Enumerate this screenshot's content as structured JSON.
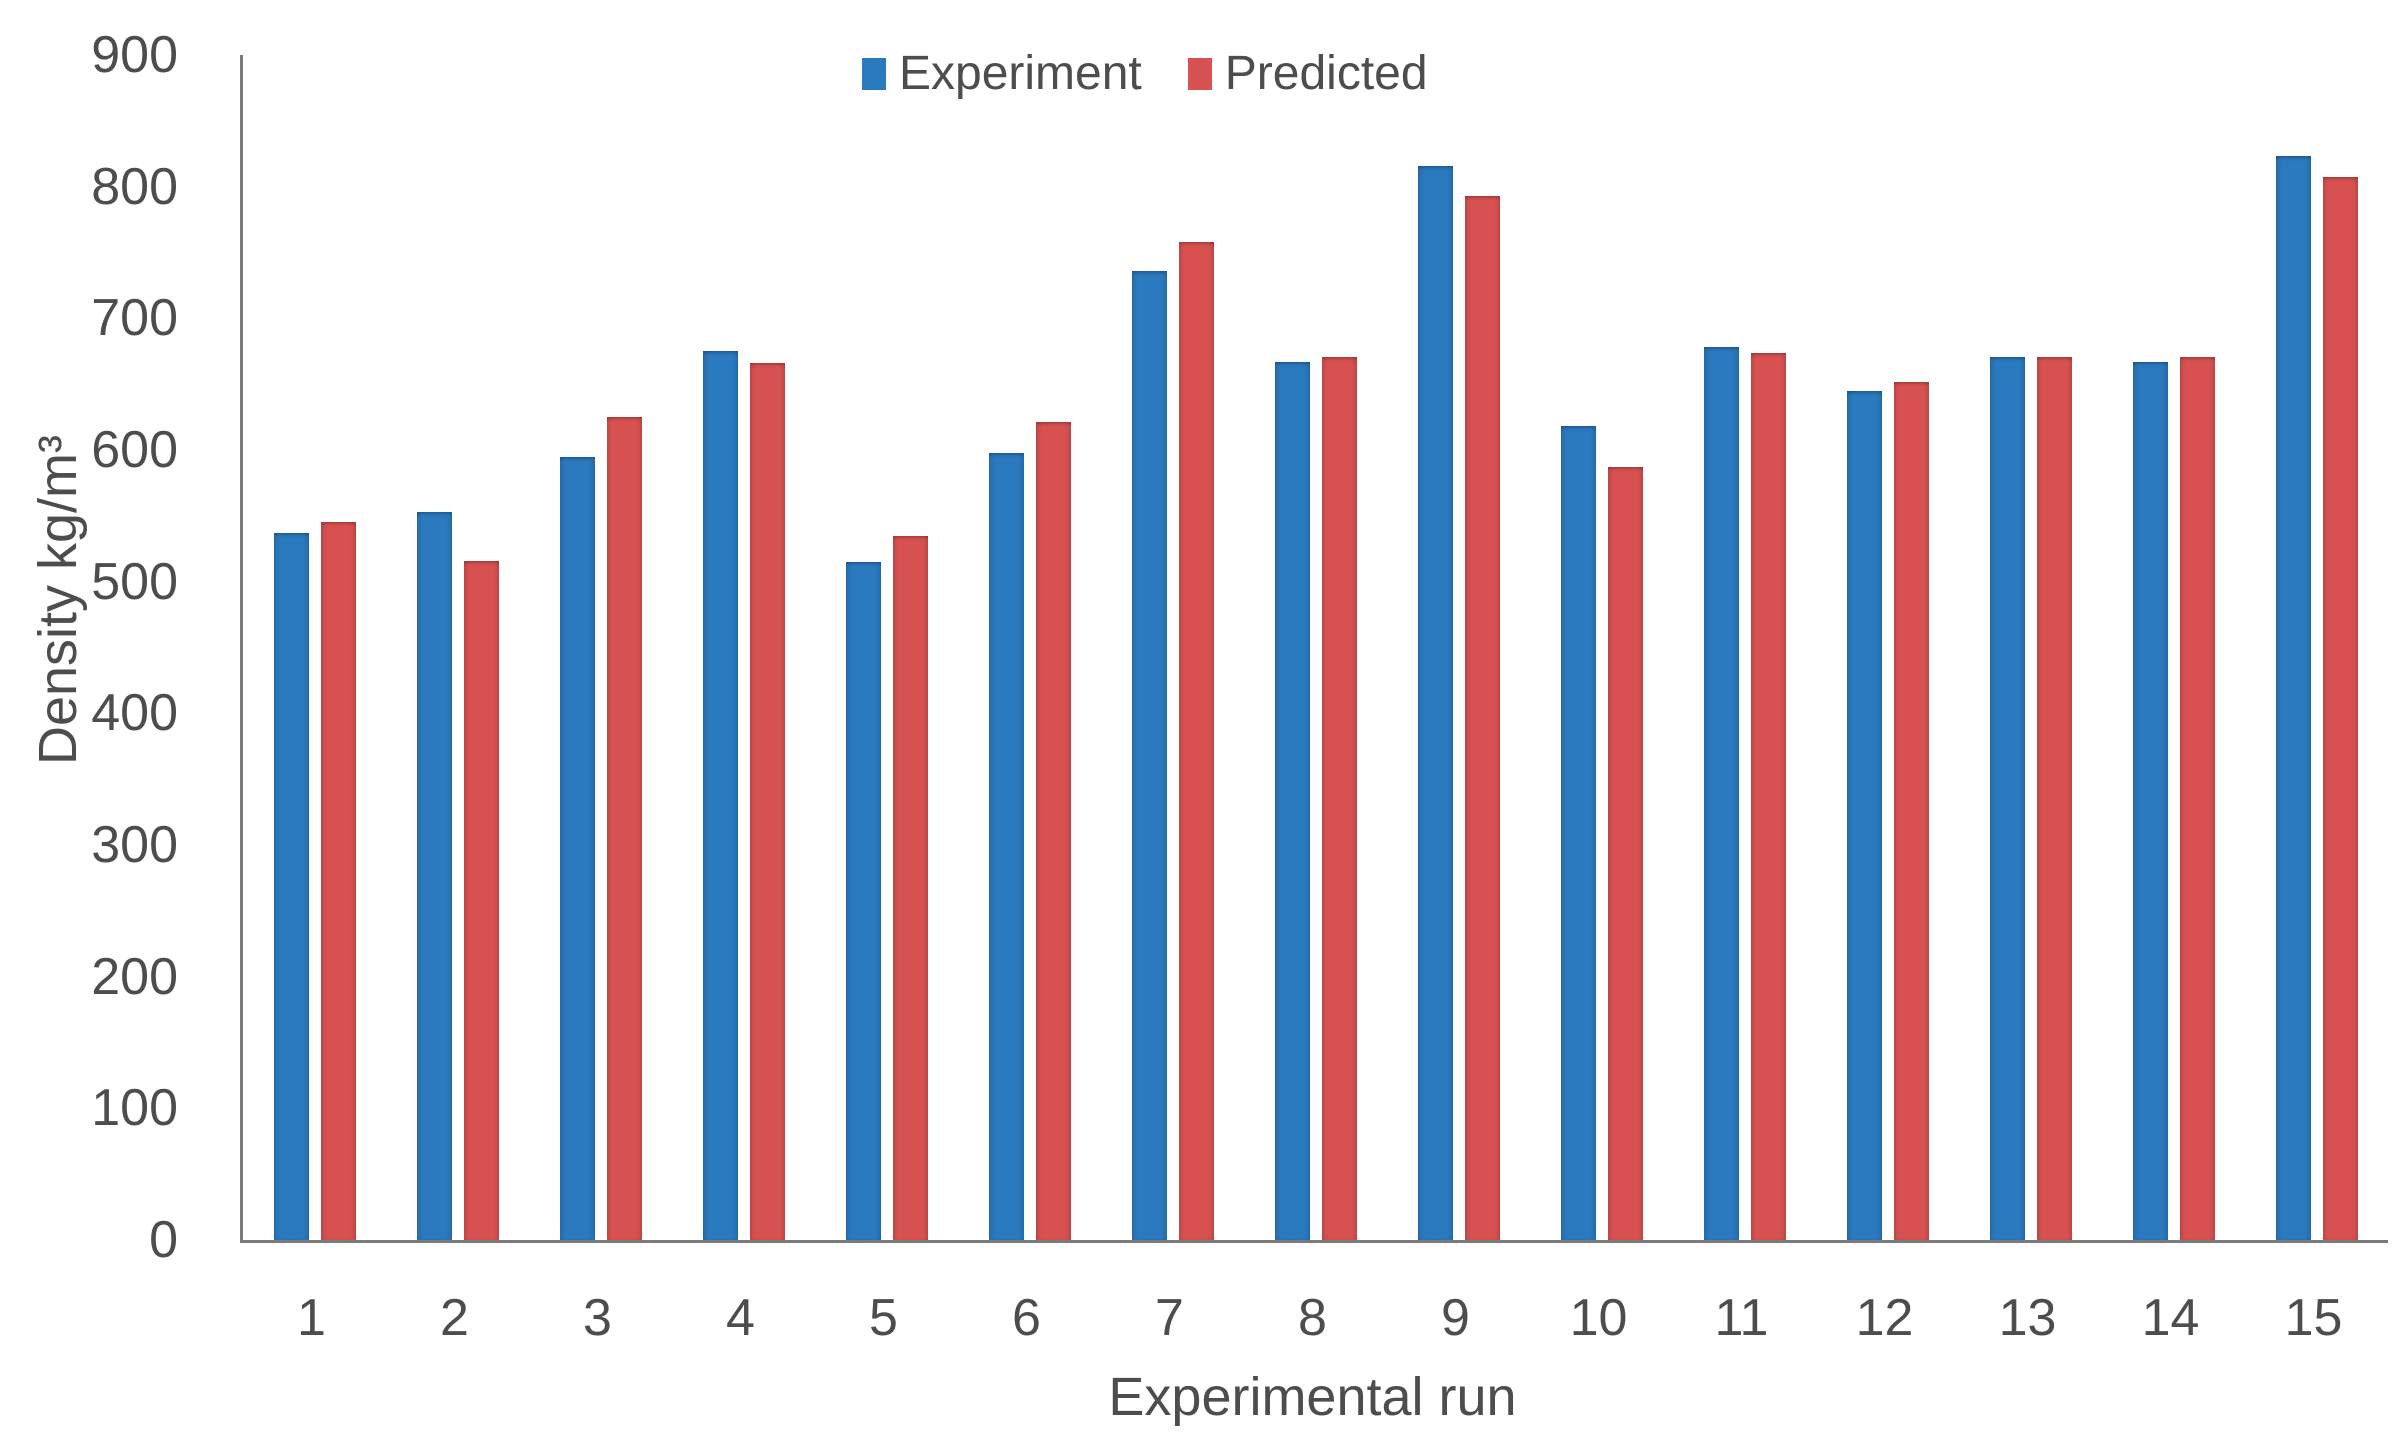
{
  "chart_data": {
    "type": "bar",
    "title": "",
    "categories": [
      "1",
      "2",
      "3",
      "4",
      "5",
      "6",
      "7",
      "8",
      "9",
      "10",
      "11",
      "12",
      "13",
      "14",
      "15"
    ],
    "series": [
      {
        "name": "Experiment",
        "color": "#2B79BE",
        "values": [
          537,
          553,
          595,
          675,
          515,
          598,
          736,
          667,
          816,
          618,
          678,
          645,
          671,
          667,
          823
        ]
      },
      {
        "name": "Predicted",
        "color": "#D85151",
        "values": [
          545,
          516,
          625,
          666,
          535,
          621,
          758,
          671,
          793,
          587,
          674,
          652,
          671,
          671,
          807
        ]
      }
    ],
    "xlabel": "Experimental run",
    "ylabel": "Density kg/m³",
    "ylim": [
      0,
      900
    ],
    "y_ticks": [
      0,
      100,
      200,
      300,
      400,
      500,
      600,
      700,
      800,
      900
    ],
    "legend_position": "top",
    "grid": false,
    "axis_color": "#7b7b7b",
    "text_color": "#4d4d4d"
  }
}
